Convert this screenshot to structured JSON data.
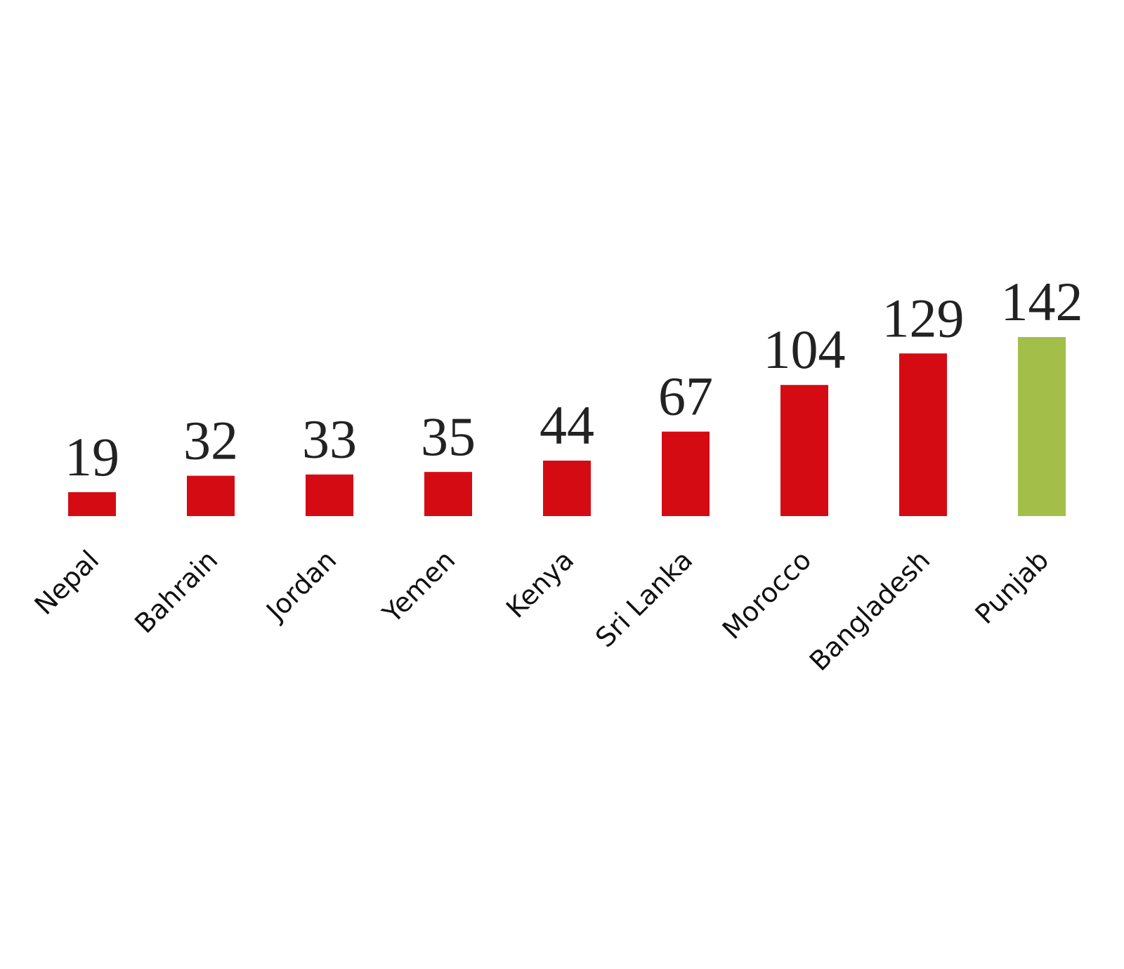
{
  "chart_data": {
    "type": "bar",
    "categories": [
      "Nepal",
      "Bahrain",
      "Jordan",
      "Yemen",
      "Kenya",
      "Sri Lanka",
      "Morocco",
      "Bangladesh",
      "Punjab"
    ],
    "values": [
      19,
      32,
      33,
      35,
      44,
      67,
      104,
      129,
      142
    ],
    "colors": [
      "#d50b14",
      "#d50b14",
      "#d50b14",
      "#d50b14",
      "#d50b14",
      "#d50b14",
      "#d50b14",
      "#d50b14",
      "#a4be4a"
    ]
  }
}
